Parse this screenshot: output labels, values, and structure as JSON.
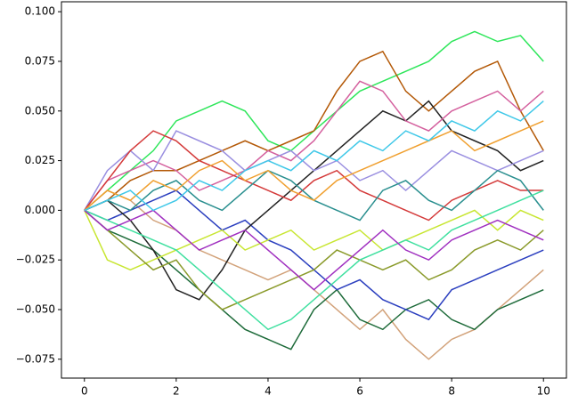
{
  "chart_data": {
    "type": "line",
    "x": [
      0,
      0.5,
      1,
      1.5,
      2,
      2.5,
      3,
      3.5,
      4,
      4.5,
      5,
      5.5,
      6,
      6.5,
      7,
      7.5,
      8,
      8.5,
      9,
      9.5,
      10
    ],
    "xlim": [
      -0.5,
      10.5
    ],
    "xticks": [
      0,
      2,
      4,
      6,
      8,
      10
    ],
    "ylim": [
      -0.0845,
      0.105
    ],
    "yticks": [
      {
        "value": -0.075,
        "label": "−0.075"
      },
      {
        "value": -0.05,
        "label": "−0.050"
      },
      {
        "value": -0.025,
        "label": "−0.025"
      },
      {
        "value": 0,
        "label": "0.000"
      },
      {
        "value": 0.025,
        "label": "0.025"
      },
      {
        "value": 0.05,
        "label": "0.050"
      },
      {
        "value": 0.075,
        "label": "0.075"
      },
      {
        "value": 0.1,
        "label": "0.100"
      }
    ],
    "series": [
      {
        "color": "#2ee65a",
        "values": [
          0,
          0.01,
          0.02,
          0.03,
          0.045,
          0.05,
          0.055,
          0.05,
          0.035,
          0.03,
          0.04,
          0.05,
          0.06,
          0.065,
          0.07,
          0.075,
          0.085,
          0.09,
          0.085,
          0.088,
          0.075
        ]
      },
      {
        "color": "#b35806",
        "values": [
          0,
          0.005,
          0.015,
          0.02,
          0.02,
          0.025,
          0.03,
          0.035,
          0.03,
          0.035,
          0.04,
          0.06,
          0.075,
          0.08,
          0.06,
          0.05,
          0.06,
          0.07,
          0.075,
          0.05,
          0.03
        ]
      },
      {
        "color": "#d2a27a",
        "values": [
          0,
          0.01,
          0.005,
          -0.005,
          -0.01,
          -0.02,
          -0.025,
          -0.03,
          -0.035,
          -0.03,
          -0.04,
          -0.05,
          -0.06,
          -0.05,
          -0.065,
          -0.075,
          -0.065,
          -0.06,
          -0.05,
          -0.04,
          -0.03
        ]
      },
      {
        "color": "#1e6b3a",
        "values": [
          0,
          -0.01,
          -0.015,
          -0.02,
          -0.03,
          -0.04,
          -0.05,
          -0.06,
          -0.065,
          -0.07,
          -0.05,
          -0.04,
          -0.055,
          -0.06,
          -0.05,
          -0.045,
          -0.055,
          -0.06,
          -0.05,
          -0.045,
          -0.04
        ]
      },
      {
        "color": "#2b3fbf",
        "values": [
          0,
          -0.005,
          0,
          0.005,
          0.01,
          0,
          -0.01,
          -0.005,
          -0.015,
          -0.02,
          -0.03,
          -0.04,
          -0.035,
          -0.045,
          -0.05,
          -0.055,
          -0.04,
          -0.035,
          -0.03,
          -0.025,
          -0.02
        ]
      },
      {
        "color": "#222222",
        "values": [
          0,
          0.005,
          -0.005,
          -0.02,
          -0.04,
          -0.045,
          -0.03,
          -0.01,
          0,
          0.01,
          0.02,
          0.03,
          0.04,
          0.05,
          0.045,
          0.055,
          0.04,
          0.035,
          0.03,
          0.02,
          0.025
        ]
      },
      {
        "color": "#d4609e",
        "values": [
          0,
          0.015,
          0.02,
          0.025,
          0.02,
          0.01,
          0.015,
          0.02,
          0.03,
          0.025,
          0.035,
          0.05,
          0.065,
          0.06,
          0.045,
          0.04,
          0.05,
          0.055,
          0.06,
          0.05,
          0.06
        ]
      },
      {
        "color": "#c8e632",
        "values": [
          0,
          -0.025,
          -0.03,
          -0.025,
          -0.02,
          -0.015,
          -0.01,
          -0.02,
          -0.015,
          -0.01,
          -0.02,
          -0.015,
          -0.01,
          -0.02,
          -0.015,
          -0.01,
          -0.005,
          0,
          -0.01,
          0,
          -0.005
        ]
      },
      {
        "color": "#9a8fe0",
        "values": [
          0,
          0.02,
          0.03,
          0.02,
          0.04,
          0.035,
          0.03,
          0.02,
          0.025,
          0.03,
          0.02,
          0.025,
          0.015,
          0.02,
          0.01,
          0.02,
          0.03,
          0.025,
          0.02,
          0.025,
          0.03
        ]
      },
      {
        "color": "#d43a3a",
        "values": [
          0,
          0.015,
          0.03,
          0.04,
          0.035,
          0.025,
          0.02,
          0.015,
          0.01,
          0.005,
          0.015,
          0.02,
          0.01,
          0.005,
          0,
          -0.005,
          0.005,
          0.01,
          0.015,
          0.01,
          0.01
        ]
      },
      {
        "color": "#8a9a2a",
        "values": [
          0,
          -0.01,
          -0.02,
          -0.03,
          -0.025,
          -0.04,
          -0.05,
          -0.045,
          -0.04,
          -0.035,
          -0.03,
          -0.02,
          -0.025,
          -0.03,
          -0.025,
          -0.035,
          -0.03,
          -0.02,
          -0.015,
          -0.02,
          -0.01
        ]
      },
      {
        "color": "#2a8f8f",
        "values": [
          0,
          0.005,
          0,
          0.01,
          0.015,
          0.005,
          0,
          0.01,
          0.02,
          0.015,
          0.005,
          0,
          -0.005,
          0.01,
          0.015,
          0.005,
          0,
          0.01,
          0.02,
          0.015,
          0
        ]
      },
      {
        "color": "#40e0a0",
        "values": [
          0,
          -0.005,
          -0.01,
          -0.015,
          -0.02,
          -0.03,
          -0.04,
          -0.05,
          -0.06,
          -0.055,
          -0.045,
          -0.035,
          -0.025,
          -0.02,
          -0.015,
          -0.02,
          -0.01,
          -0.005,
          0,
          0.005,
          0.01
        ]
      },
      {
        "color": "#f0a030",
        "values": [
          0,
          0.01,
          0.005,
          0.015,
          0.01,
          0.02,
          0.025,
          0.015,
          0.02,
          0.01,
          0.005,
          0.015,
          0.02,
          0.025,
          0.03,
          0.035,
          0.04,
          0.03,
          0.035,
          0.04,
          0.045
        ]
      },
      {
        "color": "#a030c0",
        "values": [
          0,
          -0.01,
          -0.005,
          0,
          -0.01,
          -0.02,
          -0.015,
          -0.01,
          -0.02,
          -0.03,
          -0.04,
          -0.03,
          -0.02,
          -0.01,
          -0.02,
          -0.025,
          -0.015,
          -0.01,
          -0.005,
          -0.01,
          -0.015
        ]
      },
      {
        "color": "#40c8e8",
        "values": [
          0,
          0.005,
          0.01,
          0,
          0.005,
          0.015,
          0.01,
          0.02,
          0.025,
          0.02,
          0.03,
          0.025,
          0.035,
          0.03,
          0.04,
          0.035,
          0.045,
          0.04,
          0.05,
          0.045,
          0.055
        ]
      }
    ]
  }
}
